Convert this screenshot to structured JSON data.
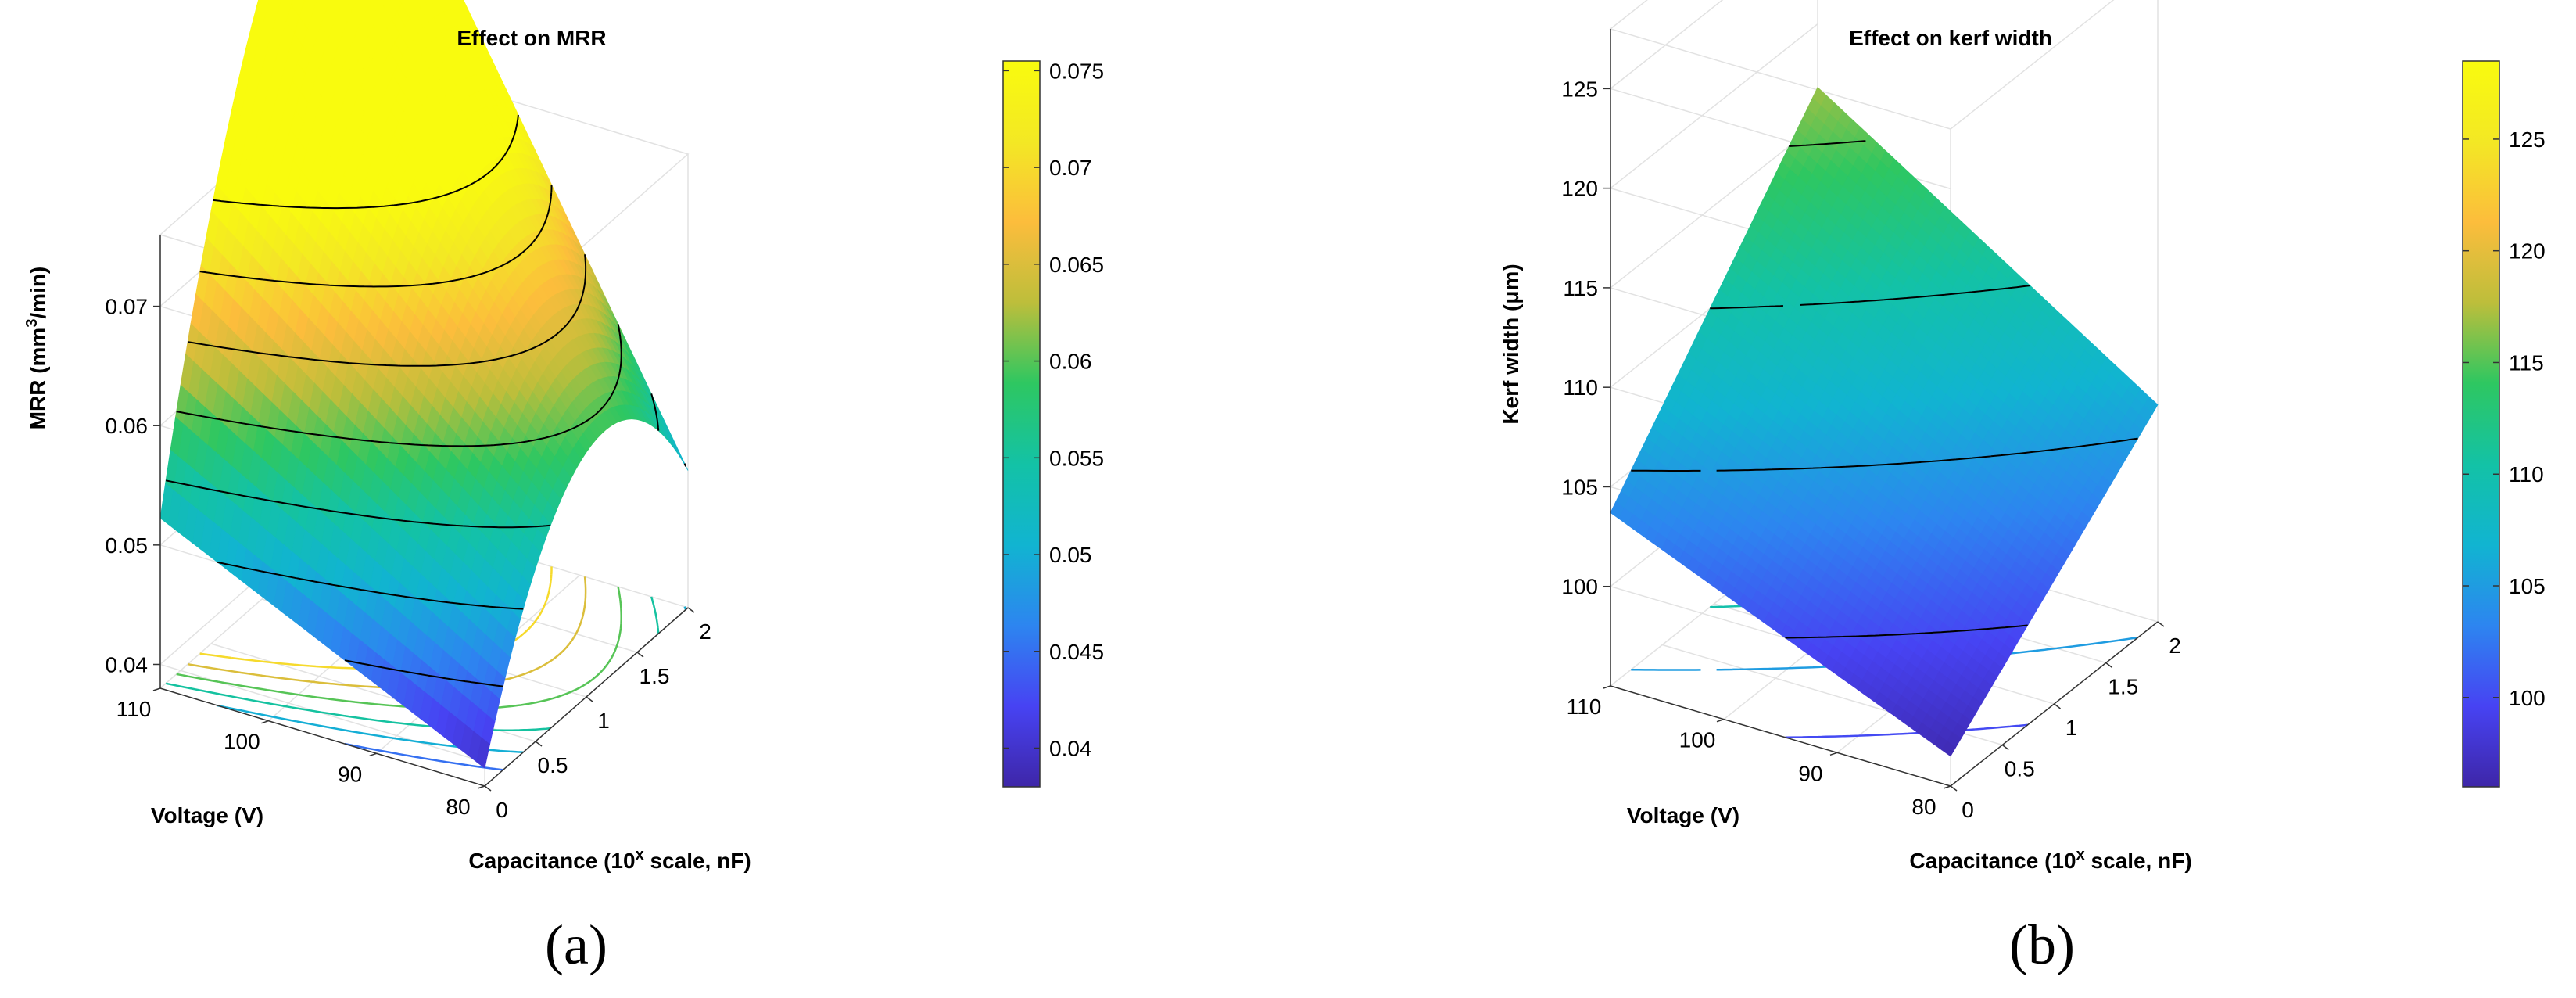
{
  "colormap": [
    "#3e26a8",
    "#4743f3",
    "#2d85f0",
    "#11b4d1",
    "#13c2a6",
    "#2ec761",
    "#bdbe3b",
    "#fcbd3c",
    "#f3e824",
    "#f9fb0e"
  ],
  "chart_data": [
    {
      "id": "a",
      "type": "surface3d",
      "title": "Effect on MRR",
      "panel_label": "(a)",
      "z_label": "MRR (mm3/min)",
      "x_label": "Capacitance (10x scale, nF)",
      "y_label": "Voltage (V)",
      "x_ticks": [
        "0",
        "0.5",
        "1",
        "1.5",
        "2"
      ],
      "y_ticks": [
        "80",
        "90",
        "100",
        "110"
      ],
      "z_ticks": [
        "0.04",
        "0.05",
        "0.06",
        "0.07"
      ],
      "xlim": [
        0,
        2
      ],
      "ylim": [
        80,
        110
      ],
      "zlim": [
        0.038,
        0.076
      ],
      "colorbar_ticks": [
        "0.04",
        "0.045",
        "0.05",
        "0.055",
        "0.06",
        "0.065",
        "0.07",
        "0.075"
      ],
      "colorbar_range": [
        0.038,
        0.0755
      ],
      "model": {
        "c": 0.0395,
        "a": 0.033,
        "b": 0.000425,
        "q": 0.014,
        "p": 0.0006
      },
      "surface_contours": [
        0.045,
        0.05,
        0.055,
        0.06,
        0.065,
        0.07,
        0.075
      ],
      "floor_contours": [
        0.045,
        0.05,
        0.055,
        0.06,
        0.065,
        0.07
      ]
    },
    {
      "id": "b",
      "type": "surface3d",
      "title": "Effect on kerf width",
      "panel_label": "(b)",
      "z_label": "Kerf width (μm)",
      "x_label": "Capacitance (10x scale, nF)",
      "y_label": "Voltage (V)",
      "x_ticks": [
        "0",
        "0.5",
        "1",
        "1.5",
        "2"
      ],
      "y_ticks": [
        "80",
        "90",
        "100",
        "110"
      ],
      "z_ticks": [
        "100",
        "105",
        "110",
        "115",
        "120",
        "125"
      ],
      "xlim": [
        0,
        2
      ],
      "ylim": [
        80,
        110
      ],
      "zlim": [
        95,
        128
      ],
      "colorbar_ticks": [
        "100",
        "105",
        "110",
        "115",
        "120",
        "125"
      ],
      "colorbar_range": [
        96,
        128.5
      ],
      "model": {
        "c": 96.5,
        "a": 4.7,
        "b": 0.24,
        "q": 0,
        "p": 0.062
      },
      "surface_contours": [
        100,
        105,
        110,
        115,
        120,
        125
      ],
      "floor_contours": [
        100,
        105,
        110,
        115,
        120
      ]
    }
  ]
}
